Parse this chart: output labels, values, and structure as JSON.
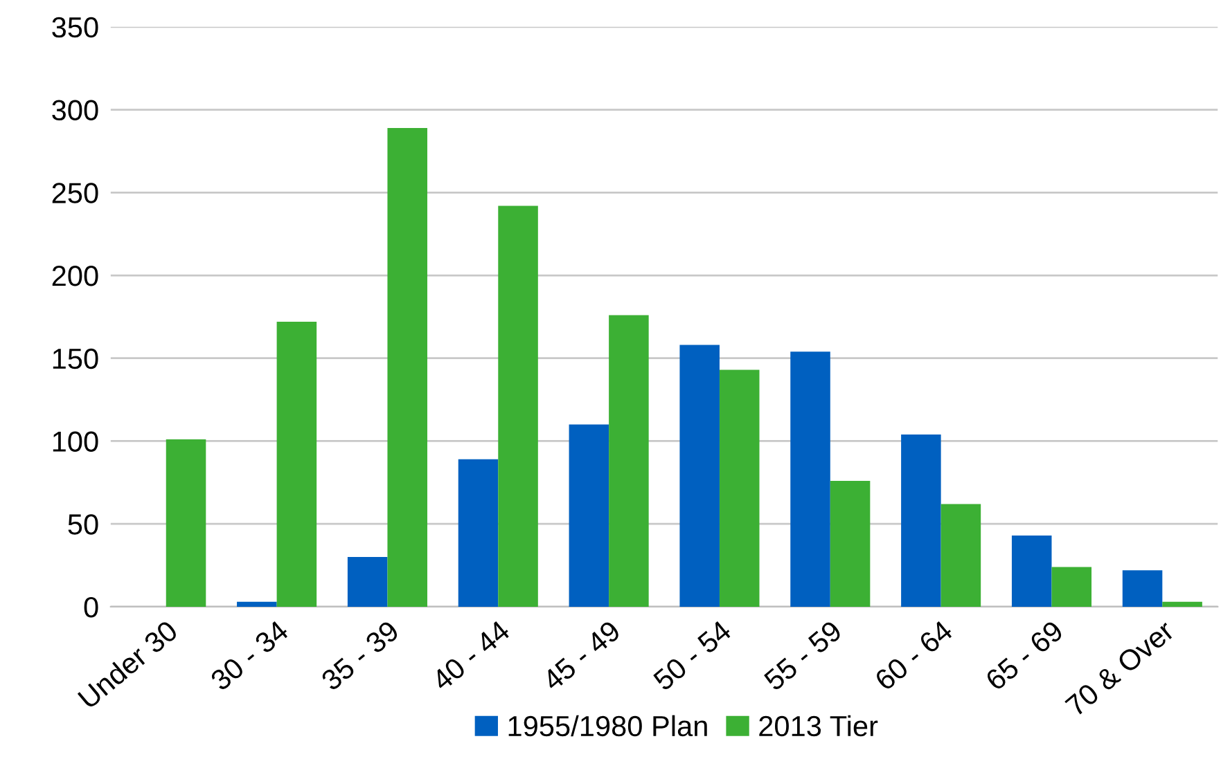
{
  "chart_data": {
    "type": "bar",
    "categories": [
      "Under 30",
      "30 - 34",
      "35 - 39",
      "40 - 44",
      "45 - 49",
      "50 - 54",
      "55 - 59",
      "60 - 64",
      "65 - 69",
      "70 & Over"
    ],
    "series": [
      {
        "name": "1955/1980 Plan",
        "color": "#0060c0",
        "values": [
          0,
          3,
          30,
          89,
          110,
          158,
          154,
          104,
          43,
          22
        ]
      },
      {
        "name": "2013 Tier",
        "color": "#3cb034",
        "values": [
          101,
          172,
          289,
          242,
          176,
          143,
          76,
          62,
          24,
          3
        ]
      }
    ],
    "ylim": [
      0,
      350
    ],
    "yticks": [
      0,
      50,
      100,
      150,
      200,
      250,
      300,
      350
    ],
    "grid": "y",
    "legend": "bottom"
  }
}
